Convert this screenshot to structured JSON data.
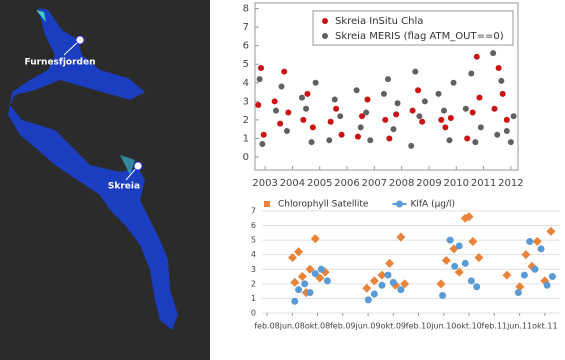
{
  "map": {
    "labels": [
      "Furnesfjorden",
      "Skreia"
    ]
  },
  "chart_data": [
    {
      "type": "scatter",
      "legend": "upper right",
      "grid": false,
      "xlim": [
        2002.63,
        2012.26
      ],
      "xticks": [
        2003,
        2004,
        2005,
        2006,
        2007,
        2008,
        2009,
        2010,
        2011,
        2012
      ],
      "ylim": [
        -0.7,
        8.3
      ],
      "yticks": [
        0,
        1,
        2,
        3,
        4,
        5,
        6,
        7,
        8
      ],
      "series": [
        {
          "name": "Skreia InSitu Chla",
          "color": "#cc1111",
          "marker": "circle",
          "x": [
            2002.75,
            2002.85,
            2002.95,
            2003.35,
            2003.55,
            2003.7,
            2003.85,
            2004.4,
            2004.55,
            2004.75,
            2005.4,
            2005.6,
            2005.8,
            2006.4,
            2006.55,
            2006.75,
            2007.4,
            2007.55,
            2007.8,
            2008.4,
            2008.6,
            2008.75,
            2009.45,
            2009.6,
            2009.8,
            2010.4,
            2010.6,
            2010.75,
            2010.85,
            2011.4,
            2011.55,
            2011.7,
            2011.85
          ],
          "values": [
            2.8,
            4.8,
            1.2,
            3.0,
            1.8,
            4.6,
            2.4,
            2.0,
            3.4,
            1.6,
            1.9,
            2.6,
            1.2,
            1.1,
            2.2,
            3.1,
            2.0,
            1.0,
            2.3,
            2.5,
            3.6,
            1.9,
            2.0,
            1.6,
            2.1,
            1.0,
            2.4,
            5.4,
            3.2,
            2.6,
            4.8,
            3.4,
            2.0
          ]
        },
        {
          "name": "Skreia MERIS (flag ATM_OUT==0)",
          "color": "#606060",
          "marker": "circle",
          "x": [
            2002.8,
            2002.9,
            2003.4,
            2003.6,
            2003.8,
            2004.35,
            2004.5,
            2004.7,
            2004.85,
            2005.35,
            2005.55,
            2005.75,
            2006.35,
            2006.5,
            2006.7,
            2006.85,
            2007.35,
            2007.5,
            2007.7,
            2007.85,
            2008.35,
            2008.5,
            2008.65,
            2008.85,
            2009.35,
            2009.55,
            2009.75,
            2009.9,
            2010.35,
            2010.55,
            2010.7,
            2010.9,
            2011.35,
            2011.5,
            2011.65,
            2011.85,
            2012.0,
            2012.1
          ],
          "values": [
            4.2,
            0.7,
            2.5,
            3.8,
            1.4,
            3.2,
            2.6,
            0.8,
            4.0,
            0.9,
            3.1,
            2.2,
            3.6,
            1.6,
            2.4,
            0.9,
            3.4,
            4.2,
            1.5,
            2.9,
            0.6,
            4.6,
            2.2,
            3.0,
            3.4,
            2.5,
            0.9,
            4.0,
            2.6,
            4.5,
            0.8,
            1.6,
            5.6,
            1.2,
            4.1,
            1.4,
            0.8,
            2.2
          ]
        }
      ]
    },
    {
      "type": "scatter",
      "legend": "top",
      "grid": true,
      "xlim": [
        2008.017,
        2011.95
      ],
      "xticks": [
        {
          "value": 2008.083,
          "label": "feb.08"
        },
        {
          "value": 2008.417,
          "label": "jun.08"
        },
        {
          "value": 2008.75,
          "label": "okt.08"
        },
        {
          "value": 2009.083,
          "label": "feb.09"
        },
        {
          "value": 2009.417,
          "label": "jun.09"
        },
        {
          "value": 2009.75,
          "label": "okt.09"
        },
        {
          "value": 2010.083,
          "label": "feb.10"
        },
        {
          "value": 2010.417,
          "label": "jun.10"
        },
        {
          "value": 2010.75,
          "label": "okt.10"
        },
        {
          "value": 2011.083,
          "label": "feb.11"
        },
        {
          "value": 2011.417,
          "label": "jun.11"
        },
        {
          "value": 2011.75,
          "label": "okt.11"
        }
      ],
      "ylim": [
        0,
        7.2
      ],
      "yticks": [
        0,
        1,
        2,
        3,
        4,
        5,
        6,
        7
      ],
      "series": [
        {
          "name": "Chlorophyll Satellite",
          "color": "#e8833a",
          "marker": "diamond",
          "x": [
            2008.42,
            2008.45,
            2008.5,
            2008.55,
            2008.6,
            2008.65,
            2008.72,
            2008.78,
            2008.85,
            2009.4,
            2009.5,
            2009.6,
            2009.7,
            2009.78,
            2009.85,
            2009.9,
            2010.38,
            2010.45,
            2010.55,
            2010.62,
            2010.7,
            2010.75,
            2010.8,
            2010.88,
            2011.25,
            2011.42,
            2011.5,
            2011.58,
            2011.65,
            2011.75,
            2011.83
          ],
          "values": [
            3.8,
            2.1,
            4.2,
            2.5,
            1.4,
            3.0,
            5.1,
            2.4,
            2.8,
            1.7,
            2.2,
            2.6,
            3.4,
            1.9,
            5.2,
            2.0,
            2.0,
            3.6,
            4.4,
            2.8,
            6.5,
            6.6,
            4.9,
            3.8,
            2.6,
            1.8,
            4.0,
            3.2,
            4.9,
            2.2,
            5.6
          ]
        },
        {
          "name": "KlfA (µg/l)",
          "color": "#5b9bd5",
          "marker": "circle",
          "x": [
            2008.45,
            2008.5,
            2008.58,
            2008.65,
            2008.72,
            2008.8,
            2008.88,
            2009.42,
            2009.5,
            2009.6,
            2009.68,
            2009.75,
            2009.85,
            2010.4,
            2010.5,
            2010.56,
            2010.62,
            2010.7,
            2010.78,
            2010.85,
            2011.4,
            2011.48,
            2011.55,
            2011.62,
            2011.7,
            2011.78,
            2011.85
          ],
          "values": [
            0.8,
            1.6,
            2.0,
            1.4,
            2.7,
            3.0,
            2.2,
            0.9,
            1.3,
            1.9,
            2.6,
            2.1,
            1.6,
            1.2,
            5.0,
            3.2,
            4.6,
            3.4,
            2.2,
            1.8,
            1.4,
            2.6,
            4.9,
            3.0,
            4.4,
            1.9,
            2.5
          ]
        }
      ]
    }
  ]
}
